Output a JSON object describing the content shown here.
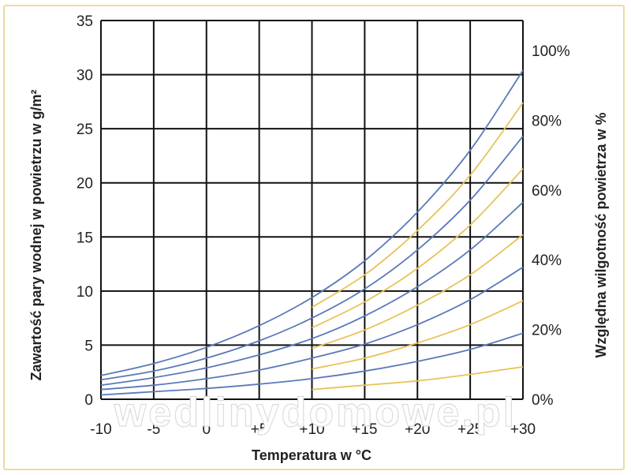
{
  "chart_data": {
    "type": "line",
    "title": "",
    "xlabel": "Temperatura w °C",
    "ylabel": "Zawartość pary wodnej w powietrzu w g/m²",
    "y2label": "Względna wilgotność powietrza w %",
    "xlim": [
      -10,
      30
    ],
    "ylim": [
      0,
      35
    ],
    "x_tick_values": [
      -10,
      -5,
      0,
      5,
      10,
      15,
      20,
      25,
      30
    ],
    "x_tick_labels": [
      "-10",
      "-5",
      "0",
      "+5",
      "+10",
      "+15",
      "+20",
      "+25",
      "+30"
    ],
    "y_ticks": [
      "0",
      "5",
      "10",
      "15",
      "20",
      "25",
      "30",
      "35"
    ],
    "y2_tick_values": [
      0,
      20,
      40,
      60,
      80,
      100
    ],
    "y2_tick_labels": [
      "0%",
      "20%",
      "40%",
      "60%",
      "80%",
      "100%"
    ],
    "grid": true,
    "x": [
      -10,
      -5,
      0,
      5,
      10,
      15,
      20,
      25,
      30
    ],
    "series": [
      {
        "rh": 100,
        "color": "#5b79b8",
        "values": [
          2.2,
          3.3,
          4.8,
          6.8,
          9.4,
          12.8,
          17.3,
          23.0,
          30.4
        ]
      },
      {
        "rh": 90,
        "color": "#e8c35a",
        "from_x": 10,
        "values": [
          2.0,
          3.0,
          4.3,
          6.1,
          8.5,
          11.5,
          15.6,
          20.7,
          27.4
        ]
      },
      {
        "rh": 80,
        "color": "#5b79b8",
        "values": [
          1.8,
          2.6,
          3.8,
          5.4,
          7.5,
          10.2,
          13.8,
          18.4,
          24.3
        ]
      },
      {
        "rh": 70,
        "color": "#e8c35a",
        "from_x": 10,
        "values": [
          1.5,
          2.3,
          3.4,
          4.8,
          6.6,
          9.0,
          12.1,
          16.1,
          21.3
        ]
      },
      {
        "rh": 60,
        "color": "#5b79b8",
        "values": [
          1.3,
          2.0,
          2.9,
          4.1,
          5.6,
          7.7,
          10.4,
          13.8,
          18.2
        ]
      },
      {
        "rh": 50,
        "color": "#e8c35a",
        "from_x": 10,
        "values": [
          1.1,
          1.7,
          2.4,
          3.4,
          4.7,
          6.4,
          8.7,
          11.5,
          15.2
        ]
      },
      {
        "rh": 40,
        "color": "#5b79b8",
        "values": [
          0.9,
          1.3,
          1.9,
          2.7,
          3.8,
          5.1,
          6.9,
          9.2,
          12.2
        ]
      },
      {
        "rh": 30,
        "color": "#e8c35a",
        "from_x": 10,
        "values": [
          0.7,
          1.0,
          1.4,
          2.0,
          2.8,
          3.8,
          5.2,
          6.9,
          9.1
        ]
      },
      {
        "rh": 20,
        "color": "#5b79b8",
        "values": [
          0.4,
          0.7,
          1.0,
          1.4,
          1.9,
          2.6,
          3.5,
          4.6,
          6.1
        ]
      },
      {
        "rh": 10,
        "color": "#e8c35a",
        "from_x": 10,
        "values": [
          0.2,
          0.3,
          0.5,
          0.7,
          0.9,
          1.3,
          1.7,
          2.3,
          3.0
        ]
      }
    ],
    "watermark": "wedlinydomowe.pl"
  }
}
